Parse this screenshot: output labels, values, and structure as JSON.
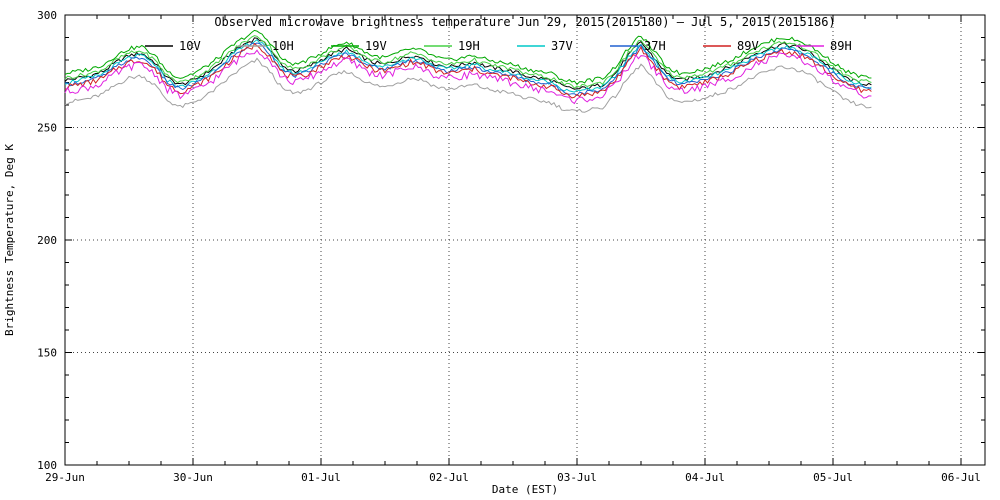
{
  "chart_data": {
    "type": "line",
    "title": "Observed microwave brightness temperature Jun 29, 2015(2015180) — Jul 5, 2015(2015186)",
    "xlabel": "Date (EST)",
    "ylabel": "Brightness Temperature, Deg K",
    "ylim": [
      100,
      300
    ],
    "y_major_ticks": [
      100,
      150,
      200,
      250,
      300
    ],
    "x_ticks": [
      {
        "label": "29-Jun",
        "day": 0
      },
      {
        "label": "30-Jun",
        "day": 1
      },
      {
        "label": "01-Jul",
        "day": 2
      },
      {
        "label": "02-Jul",
        "day": 3
      },
      {
        "label": "03-Jul",
        "day": 4
      },
      {
        "label": "04-Jul",
        "day": 5
      },
      {
        "label": "05-Jul",
        "day": 6
      },
      {
        "label": "06-Jul",
        "day": 7
      }
    ],
    "x_unit": "days since 29-Jun-2015 00:00 EST",
    "x_start": 0.0,
    "x_step": 0.1,
    "grid": "dotted",
    "legend_position": "top-inside",
    "base_values": [
      270,
      271,
      272,
      274,
      278,
      281,
      282,
      278,
      271,
      268,
      270,
      273,
      277,
      282,
      286,
      289,
      284,
      276,
      274,
      276,
      279,
      282,
      284,
      281,
      278,
      277,
      279,
      281,
      280,
      277,
      276,
      277,
      278,
      276,
      275,
      274,
      272,
      271,
      270,
      267,
      266,
      267,
      268,
      273,
      281,
      287,
      280,
      273,
      270,
      271,
      272,
      274,
      276,
      279,
      282,
      284,
      286,
      285,
      283,
      279,
      275,
      271,
      269,
      268
    ],
    "values_note": "series y value at each x = base_values[i] + offset_k (deg K)",
    "series": [
      {
        "name": "10V",
        "color": "#000000",
        "offset_k": 1
      },
      {
        "name": "10H",
        "color": "#a0a0a0",
        "offset_k": -9
      },
      {
        "name": "19V",
        "color": "#00a800",
        "offset_k": 4
      },
      {
        "name": "19H",
        "color": "#46d046",
        "offset_k": 2
      },
      {
        "name": "37V",
        "color": "#00c8c8",
        "offset_k": 0
      },
      {
        "name": "37H",
        "color": "#2060d0",
        "offset_k": -1
      },
      {
        "name": "89V",
        "color": "#d02020",
        "offset_k": -2
      },
      {
        "name": "89H",
        "color": "#e020e0",
        "offset_k": -4
      }
    ]
  }
}
